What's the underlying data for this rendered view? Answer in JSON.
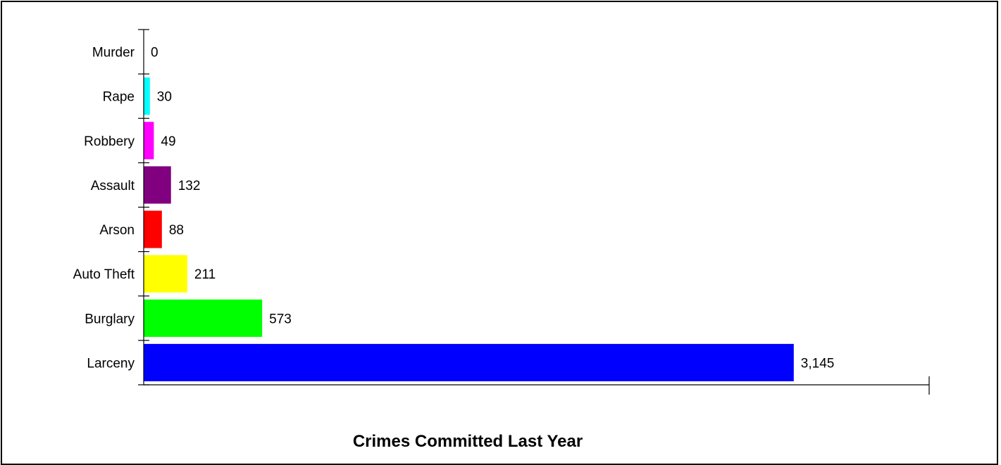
{
  "chart_data": {
    "type": "bar",
    "orientation": "horizontal",
    "title": "Crimes Committed Last Year",
    "categories": [
      "Murder",
      "Rape",
      "Robbery",
      "Assault",
      "Arson",
      "Auto Theft",
      "Burglary",
      "Larceny"
    ],
    "values": [
      0,
      30,
      49,
      132,
      88,
      211,
      573,
      3145
    ],
    "value_labels": [
      "0",
      "30",
      "49",
      "132",
      "88",
      "211",
      "573",
      "3,145"
    ],
    "colors": [
      "#000080",
      "#00ffff",
      "#ff00ff",
      "#800080",
      "#ff0000",
      "#ffff00",
      "#00ff00",
      "#0000ff"
    ],
    "xlim": [
      0,
      3800
    ],
    "grid": false,
    "legend": "none"
  }
}
